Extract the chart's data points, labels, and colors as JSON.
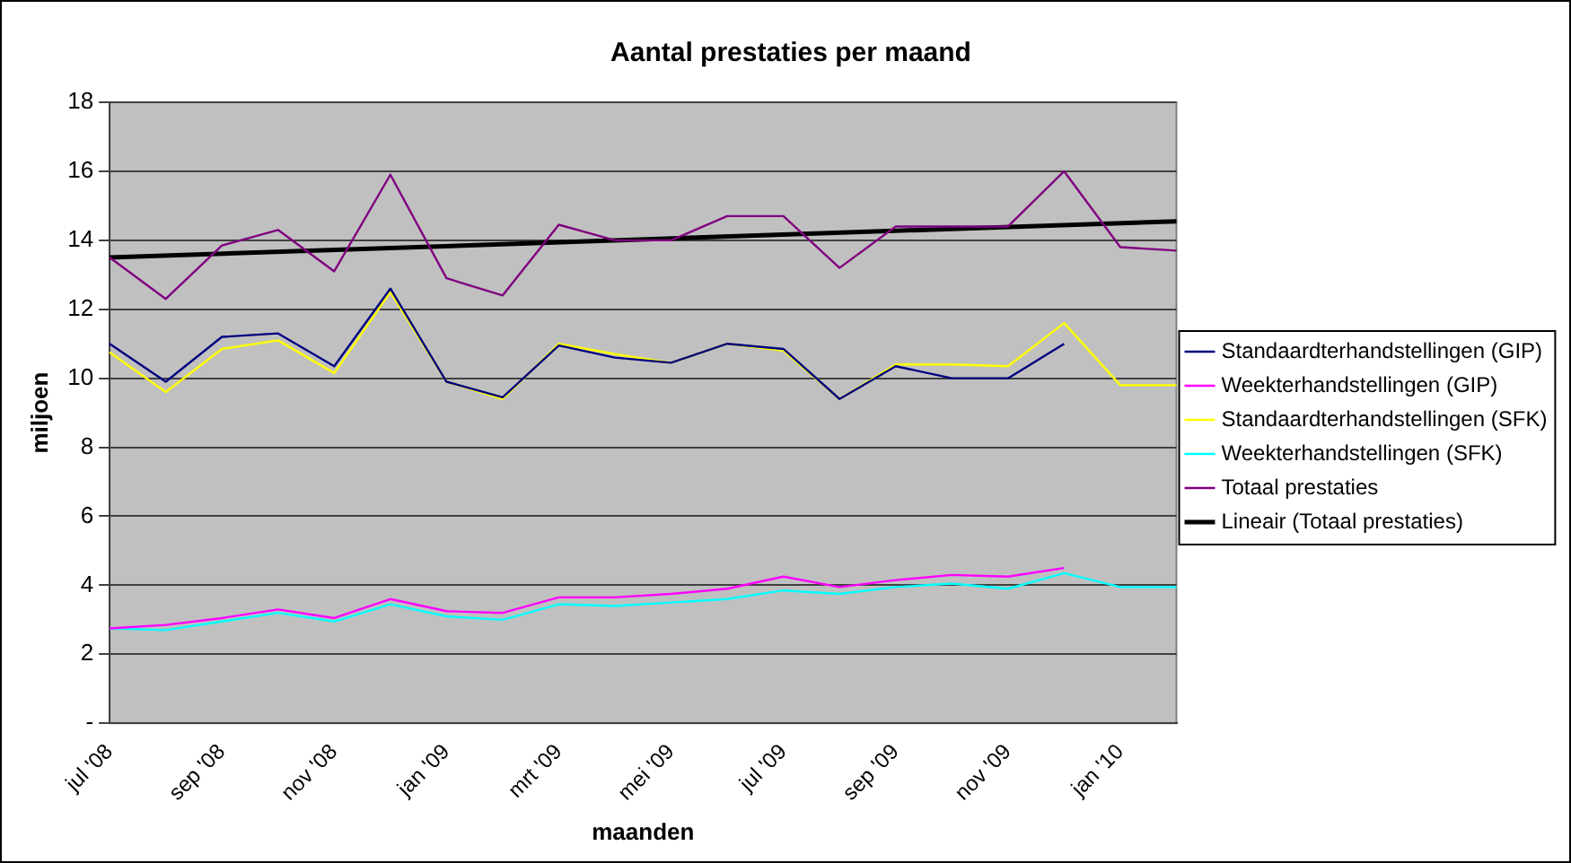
{
  "chart_data": {
    "type": "line",
    "title": "Aantal prestaties per maand",
    "xlabel": "maanden",
    "ylabel": "miljoen",
    "categories": [
      "jul '08",
      null,
      "sep '08",
      null,
      "nov '08",
      null,
      "jan '09",
      null,
      "mrt '09",
      null,
      "mei '09",
      null,
      "jul '09",
      null,
      "sep '09",
      null,
      "nov '09",
      null,
      "jan '10",
      null
    ],
    "series": [
      {
        "name": "Standaardterhandstellingen (GIP)",
        "color": "#000080",
        "values": [
          11.0,
          9.9,
          11.2,
          11.3,
          10.35,
          12.6,
          9.9,
          9.45,
          10.95,
          10.6,
          10.45,
          11.0,
          10.85,
          9.4,
          10.35,
          10.0,
          10.0,
          11.0,
          null,
          null
        ]
      },
      {
        "name": "Weekterhandstellingen (GIP)",
        "color": "#ff00ff",
        "values": [
          2.75,
          2.85,
          3.05,
          3.3,
          3.05,
          3.6,
          3.25,
          3.2,
          3.65,
          3.65,
          3.75,
          3.9,
          4.25,
          3.95,
          4.15,
          4.3,
          4.25,
          4.5,
          null,
          null
        ]
      },
      {
        "name": "Standaardterhandstellingen (SFK)",
        "color": "#ffff00",
        "values": [
          10.75,
          9.6,
          10.85,
          11.1,
          10.15,
          12.5,
          9.9,
          9.4,
          11.0,
          10.7,
          10.45,
          11.0,
          10.8,
          9.4,
          10.4,
          10.4,
          10.35,
          11.6,
          9.8,
          9.8
        ]
      },
      {
        "name": "Weekterhandstellingen (SFK)",
        "color": "#00ffff",
        "values": [
          2.75,
          2.7,
          2.95,
          3.2,
          2.95,
          3.45,
          3.1,
          3.0,
          3.45,
          3.4,
          3.5,
          3.6,
          3.85,
          3.75,
          3.95,
          4.05,
          3.9,
          4.35,
          3.95,
          3.95
        ]
      },
      {
        "name": "Totaal prestaties",
        "color": "#800080",
        "values": [
          13.5,
          12.3,
          13.85,
          14.3,
          13.1,
          15.9,
          12.9,
          12.4,
          14.45,
          14.0,
          14.0,
          14.7,
          14.7,
          13.2,
          14.4,
          14.4,
          14.4,
          16.0,
          13.8,
          13.7
        ]
      },
      {
        "name": "Lineair (Totaal prestaties)",
        "color": "#000000",
        "values": [
          13.5,
          null,
          null,
          null,
          null,
          null,
          null,
          null,
          null,
          null,
          null,
          null,
          null,
          null,
          null,
          null,
          null,
          null,
          null,
          14.55
        ]
      }
    ],
    "ylim": [
      0,
      18
    ],
    "yticks": [
      {
        "value": 0,
        "label": "-"
      },
      2,
      4,
      6,
      8,
      10,
      12,
      14,
      16,
      18
    ],
    "grid": "y",
    "legend": "right",
    "marker": "none",
    "line_style": "solid"
  }
}
